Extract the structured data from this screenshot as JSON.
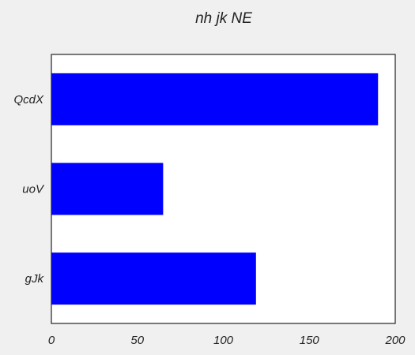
{
  "chart_data": {
    "type": "bar",
    "orientation": "horizontal",
    "title": "nh jk NE",
    "xlabel": "",
    "ylabel": "",
    "categories": [
      "QcdX",
      "uoV",
      "gJk"
    ],
    "values": [
      190,
      65,
      119
    ],
    "xlim": [
      0,
      200
    ],
    "xticks": [
      0,
      50,
      100,
      150,
      200
    ],
    "grid": false,
    "legend": "none",
    "colors": {
      "bar": "#0000ff",
      "plot_background": "#ffffff",
      "figure_background": "#f0f0f0",
      "axis": "#222222"
    }
  }
}
